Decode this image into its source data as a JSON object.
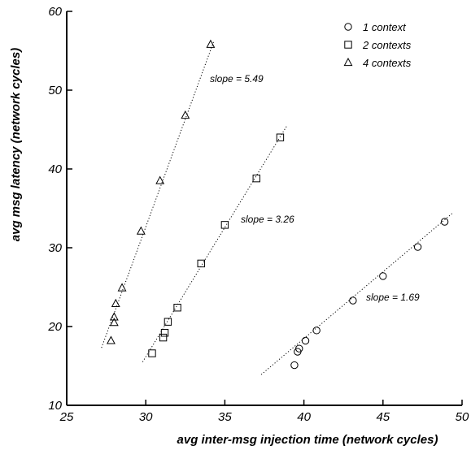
{
  "chart_data": {
    "type": "scatter",
    "xlabel": "avg inter-msg injection time (network cycles)",
    "ylabel": "avg msg latency (network cycles)",
    "xlim": [
      25,
      50
    ],
    "ylim": [
      10,
      60
    ],
    "xticks": [
      25,
      30,
      35,
      40,
      45,
      50
    ],
    "yticks": [
      10,
      20,
      30,
      40,
      50,
      60
    ],
    "grid": false,
    "legend_position": "top-right",
    "series": [
      {
        "name": "1 context",
        "marker": "circle",
        "points": [
          [
            39.4,
            15.1
          ],
          [
            39.6,
            16.8
          ],
          [
            39.7,
            17.2
          ],
          [
            40.1,
            18.2
          ],
          [
            40.8,
            19.5
          ],
          [
            43.1,
            23.3
          ],
          [
            45.0,
            26.4
          ],
          [
            47.2,
            30.1
          ],
          [
            48.9,
            33.3
          ]
        ],
        "fit": {
          "x": [
            37.3,
            49.4
          ],
          "y": [
            13.9,
            34.4
          ]
        },
        "slope_label": "slope = 1.69"
      },
      {
        "name": "2 contexts",
        "marker": "square",
        "points": [
          [
            30.4,
            16.6
          ],
          [
            31.1,
            18.6
          ],
          [
            31.2,
            19.2
          ],
          [
            31.4,
            20.6
          ],
          [
            32.0,
            22.4
          ],
          [
            33.5,
            28.0
          ],
          [
            35.0,
            32.9
          ],
          [
            37.0,
            38.8
          ],
          [
            38.5,
            44.0
          ]
        ],
        "fit": {
          "x": [
            29.8,
            38.9
          ],
          "y": [
            15.5,
            45.4
          ]
        },
        "slope_label": "slope = 3.26"
      },
      {
        "name": "4 contexts",
        "marker": "triangle",
        "points": [
          [
            27.8,
            18.2
          ],
          [
            28.0,
            20.5
          ],
          [
            28.0,
            21.2
          ],
          [
            28.1,
            22.9
          ],
          [
            28.5,
            24.9
          ],
          [
            29.7,
            32.1
          ],
          [
            30.9,
            38.5
          ],
          [
            32.5,
            46.8
          ],
          [
            34.1,
            55.8
          ]
        ],
        "fit": {
          "x": [
            27.2,
            34.3
          ],
          "y": [
            17.3,
            56.2
          ]
        },
        "slope_label": "slope = 5.49"
      }
    ]
  },
  "colors": {
    "marker_stroke": "#000000",
    "background": "#ffffff"
  }
}
